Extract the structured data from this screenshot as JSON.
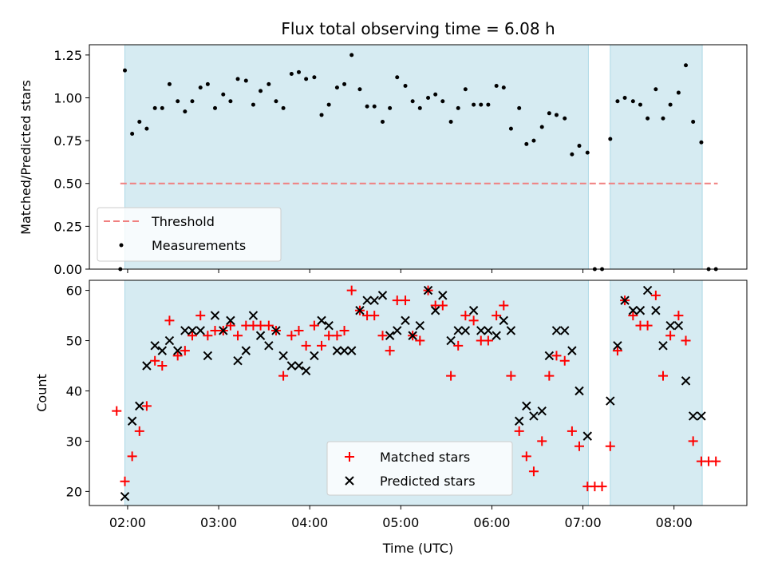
{
  "chart_data": [
    {
      "type": "scatter",
      "title": "Flux total observing time = 6.08 h",
      "ylabel": "Matched/Predicted stars",
      "xlabel": "",
      "x_ticks": [
        "02:00",
        "03:00",
        "04:00",
        "05:00",
        "06:00",
        "07:00",
        "08:00"
      ],
      "x_tick_values": [
        2.0,
        3.0,
        4.0,
        5.0,
        6.0,
        7.0,
        8.0
      ],
      "xlim": [
        1.58,
        8.8
      ],
      "ylim": [
        0.0,
        1.31
      ],
      "y_ticks": [
        0.0,
        0.25,
        0.5,
        0.75,
        1.0,
        1.25
      ],
      "y_tick_labels": [
        "0.00",
        "0.25",
        "0.50",
        "0.75",
        "1.00",
        "1.25"
      ],
      "observing_windows": [
        [
          1.97,
          7.06
        ],
        [
          7.3,
          8.31
        ]
      ],
      "legend_position": "lower-left",
      "threshold": {
        "name": "Threshold",
        "y": 0.5,
        "x_range": [
          1.92,
          8.48
        ],
        "color": "#f08080"
      },
      "series": [
        {
          "name": "Measurements",
          "color": "#000000",
          "x": [
            1.92,
            1.97,
            2.05,
            2.13,
            2.21,
            2.3,
            2.38,
            2.46,
            2.55,
            2.63,
            2.71,
            2.8,
            2.88,
            2.96,
            3.05,
            3.13,
            3.21,
            3.3,
            3.38,
            3.46,
            3.55,
            3.63,
            3.71,
            3.8,
            3.88,
            3.96,
            4.05,
            4.13,
            4.21,
            4.3,
            4.38,
            4.46,
            4.55,
            4.63,
            4.71,
            4.8,
            4.88,
            4.96,
            5.05,
            5.13,
            5.21,
            5.3,
            5.38,
            5.46,
            5.55,
            5.63,
            5.71,
            5.8,
            5.88,
            5.96,
            6.05,
            6.13,
            6.21,
            6.3,
            6.38,
            6.46,
            6.55,
            6.63,
            6.71,
            6.8,
            6.88,
            6.96,
            7.05,
            7.13,
            7.21,
            7.3,
            7.38,
            7.46,
            7.55,
            7.63,
            7.71,
            7.8,
            7.88,
            7.96,
            8.05,
            8.13,
            8.21,
            8.3,
            8.38,
            8.46
          ],
          "y": [
            0.0,
            1.16,
            0.79,
            0.86,
            0.82,
            0.94,
            0.94,
            1.08,
            0.98,
            0.92,
            0.98,
            1.06,
            1.08,
            0.94,
            1.02,
            0.98,
            1.11,
            1.1,
            0.96,
            1.04,
            1.08,
            0.98,
            0.94,
            1.14,
            1.15,
            1.11,
            1.12,
            0.9,
            0.96,
            1.06,
            1.08,
            1.25,
            1.05,
            0.95,
            0.95,
            0.86,
            0.94,
            1.12,
            1.07,
            0.98,
            0.94,
            1.0,
            1.02,
            0.98,
            0.86,
            0.94,
            1.05,
            0.96,
            0.96,
            0.96,
            1.07,
            1.06,
            0.82,
            0.94,
            0.73,
            0.75,
            0.83,
            0.91,
            0.9,
            0.88,
            0.67,
            0.72,
            0.68,
            0.0,
            0.0,
            0.76,
            0.98,
            1.0,
            0.98,
            0.96,
            0.88,
            1.05,
            0.88,
            0.96,
            1.03,
            1.19,
            0.86,
            0.74,
            0.0,
            0.0
          ]
        }
      ]
    },
    {
      "type": "scatter",
      "title": "",
      "ylabel": "Count",
      "xlabel": "Time (UTC)",
      "x_ticks": [
        "02:00",
        "03:00",
        "04:00",
        "05:00",
        "06:00",
        "07:00",
        "08:00"
      ],
      "x_tick_values": [
        2.0,
        3.0,
        4.0,
        5.0,
        6.0,
        7.0,
        8.0
      ],
      "xlim": [
        1.58,
        8.8
      ],
      "ylim": [
        17.2,
        62.0
      ],
      "y_ticks": [
        20,
        30,
        40,
        50,
        60
      ],
      "y_tick_labels": [
        "20",
        "30",
        "40",
        "50",
        "60"
      ],
      "observing_windows": [
        [
          1.97,
          7.06
        ],
        [
          7.3,
          8.31
        ]
      ],
      "legend_position": "lower-center",
      "series": [
        {
          "name": "Matched stars",
          "color": "#ff0000",
          "marker": "plus",
          "x": [
            1.88,
            1.97,
            2.05,
            2.13,
            2.21,
            2.3,
            2.38,
            2.46,
            2.55,
            2.63,
            2.71,
            2.8,
            2.88,
            2.96,
            3.05,
            3.13,
            3.21,
            3.3,
            3.38,
            3.46,
            3.55,
            3.63,
            3.71,
            3.8,
            3.88,
            3.96,
            4.05,
            4.13,
            4.21,
            4.3,
            4.38,
            4.46,
            4.55,
            4.63,
            4.71,
            4.8,
            4.88,
            4.96,
            5.05,
            5.13,
            5.21,
            5.3,
            5.38,
            5.46,
            5.55,
            5.63,
            5.71,
            5.8,
            5.88,
            5.96,
            6.05,
            6.13,
            6.21,
            6.3,
            6.38,
            6.46,
            6.55,
            6.63,
            6.71,
            6.8,
            6.88,
            6.96,
            7.05,
            7.13,
            7.21,
            7.3,
            7.38,
            7.46,
            7.55,
            7.63,
            7.71,
            7.8,
            7.88,
            7.96,
            8.05,
            8.13,
            8.21,
            8.3,
            8.38,
            8.46
          ],
          "y": [
            36,
            22,
            27,
            32,
            37,
            46,
            45,
            54,
            47,
            48,
            51,
            55,
            51,
            52,
            52,
            53,
            51,
            53,
            53,
            53,
            53,
            52,
            43,
            51,
            52,
            49,
            53,
            49,
            51,
            51,
            52,
            60,
            56,
            55,
            55,
            51,
            48,
            58,
            58,
            51,
            50,
            60,
            57,
            57,
            43,
            49,
            55,
            54,
            50,
            50,
            55,
            57,
            43,
            32,
            27,
            24,
            30,
            43,
            47,
            46,
            32,
            29,
            21,
            21,
            21,
            29,
            48,
            58,
            55,
            53,
            53,
            59,
            43,
            51,
            55,
            50,
            30,
            26,
            26,
            26
          ]
        },
        {
          "name": "Predicted stars",
          "color": "#000000",
          "marker": "x",
          "x": [
            1.97,
            2.05,
            2.13,
            2.21,
            2.3,
            2.38,
            2.46,
            2.55,
            2.63,
            2.71,
            2.8,
            2.88,
            2.96,
            3.05,
            3.13,
            3.21,
            3.3,
            3.38,
            3.46,
            3.55,
            3.63,
            3.71,
            3.8,
            3.88,
            3.96,
            4.05,
            4.13,
            4.21,
            4.3,
            4.38,
            4.46,
            4.55,
            4.63,
            4.71,
            4.8,
            4.88,
            4.96,
            5.05,
            5.13,
            5.21,
            5.3,
            5.38,
            5.46,
            5.55,
            5.63,
            5.71,
            5.8,
            5.88,
            5.96,
            6.05,
            6.13,
            6.21,
            6.3,
            6.38,
            6.46,
            6.55,
            6.63,
            6.71,
            6.8,
            6.88,
            6.96,
            7.05,
            7.3,
            7.38,
            7.46,
            7.55,
            7.63,
            7.71,
            7.8,
            7.88,
            7.96,
            8.05,
            8.13,
            8.21,
            8.3
          ],
          "y": [
            19,
            34,
            37,
            45,
            49,
            48,
            50,
            48,
            52,
            52,
            52,
            47,
            55,
            52,
            54,
            46,
            48,
            55,
            51,
            49,
            52,
            47,
            45,
            45,
            44,
            47,
            54,
            53,
            48,
            48,
            48,
            56,
            58,
            58,
            59,
            51,
            52,
            54,
            51,
            53,
            60,
            56,
            59,
            50,
            52,
            52,
            56,
            52,
            52,
            51,
            54,
            52,
            34,
            37,
            35,
            36,
            47,
            52,
            52,
            48,
            40,
            31,
            38,
            49,
            58,
            56,
            56,
            60,
            56,
            49,
            53,
            53,
            42,
            35,
            35
          ]
        }
      ]
    }
  ]
}
